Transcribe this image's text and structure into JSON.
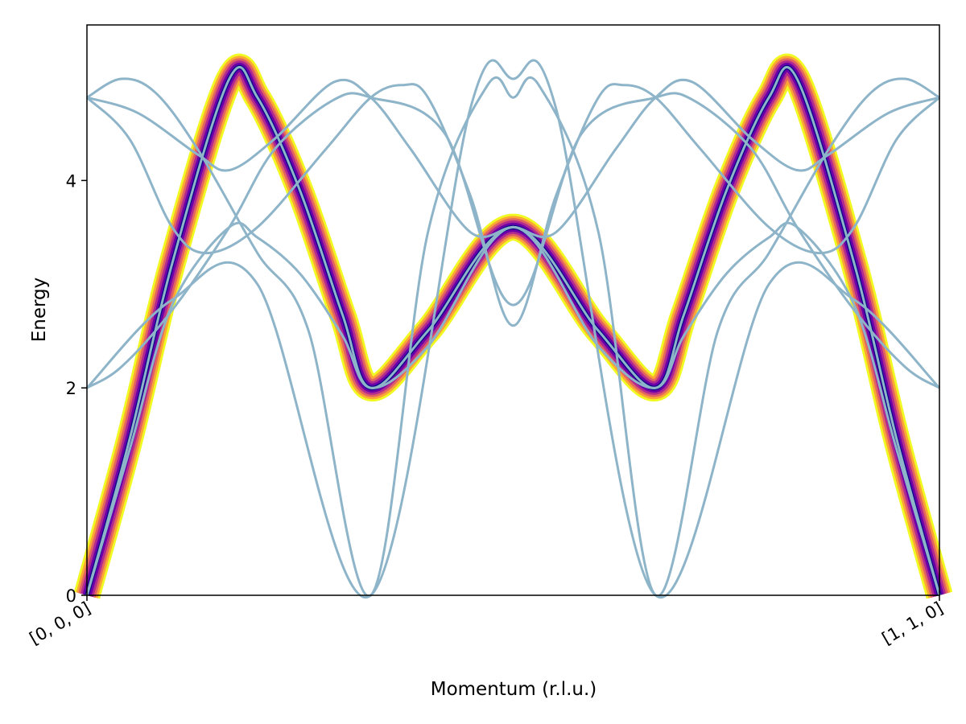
{
  "chart_data": {
    "type": "line",
    "xlabel": "Momentum (r.l.u.)",
    "ylabel": "Energy",
    "xlim": [
      0,
      1
    ],
    "ylim": [
      0,
      5.5
    ],
    "x_ticks": [
      {
        "value": 0,
        "label": "[0, 0, 0]"
      },
      {
        "value": 1,
        "label": "[1, 1, 0]"
      }
    ],
    "y_ticks": [
      {
        "value": 0,
        "label": "0"
      },
      {
        "value": 2,
        "label": "2"
      },
      {
        "value": 4,
        "label": "4"
      }
    ],
    "grid": false,
    "legend": "none",
    "line_color": "#8db4c8",
    "heatmap_colors": [
      "#f0f921",
      "#fca636",
      "#e16462",
      "#b12a90",
      "#6a00a8",
      "#0d0887"
    ],
    "series": [
      {
        "points": [
          [
            0,
            0
          ],
          [
            0.05,
            1.4
          ],
          [
            0.1,
            2.8
          ],
          [
            0.167,
            3.55
          ],
          [
            0.2,
            3.45
          ],
          [
            0.25,
            3.1
          ],
          [
            0.3,
            2.5
          ],
          [
            0.333,
            2.0
          ],
          [
            0.4,
            2.4
          ],
          [
            0.5,
            3.55
          ],
          [
            0.6,
            2.4
          ],
          [
            0.667,
            2.0
          ],
          [
            0.7,
            2.5
          ],
          [
            0.75,
            3.1
          ],
          [
            0.8,
            3.45
          ],
          [
            0.833,
            3.55
          ],
          [
            0.9,
            2.8
          ],
          [
            0.95,
            1.4
          ],
          [
            1,
            0
          ]
        ]
      },
      {
        "points": [
          [
            0,
            0
          ],
          [
            0.05,
            1.5
          ],
          [
            0.1,
            3.2
          ],
          [
            0.167,
            4.98
          ],
          [
            0.2,
            4.8
          ],
          [
            0.25,
            3.9
          ],
          [
            0.3,
            2.7
          ],
          [
            0.333,
            2.0
          ],
          [
            0.4,
            2.55
          ],
          [
            0.5,
            3.55
          ],
          [
            0.6,
            2.55
          ],
          [
            0.667,
            2.0
          ],
          [
            0.7,
            2.7
          ],
          [
            0.75,
            3.9
          ],
          [
            0.8,
            4.8
          ],
          [
            0.833,
            4.98
          ],
          [
            0.9,
            3.2
          ],
          [
            0.95,
            1.5
          ],
          [
            1,
            0
          ]
        ]
      },
      {
        "points": [
          [
            0,
            4.8
          ],
          [
            0.05,
            4.4
          ],
          [
            0.1,
            3.55
          ],
          [
            0.14,
            3.3
          ],
          [
            0.2,
            3.55
          ],
          [
            0.28,
            4.3
          ],
          [
            0.333,
            4.8
          ],
          [
            0.37,
            4.92
          ],
          [
            0.4,
            4.8
          ],
          [
            0.45,
            3.85
          ],
          [
            0.5,
            2.6
          ],
          [
            0.55,
            3.85
          ],
          [
            0.6,
            4.8
          ],
          [
            0.63,
            4.92
          ],
          [
            0.667,
            4.8
          ],
          [
            0.72,
            4.3
          ],
          [
            0.8,
            3.55
          ],
          [
            0.86,
            3.3
          ],
          [
            0.9,
            3.55
          ],
          [
            0.95,
            4.4
          ],
          [
            1,
            4.8
          ]
        ]
      },
      {
        "points": [
          [
            0,
            4.8
          ],
          [
            0.06,
            4.65
          ],
          [
            0.13,
            4.25
          ],
          [
            0.167,
            4.1
          ],
          [
            0.22,
            4.4
          ],
          [
            0.29,
            4.95
          ],
          [
            0.333,
            4.8
          ],
          [
            0.38,
            4.3
          ],
          [
            0.45,
            3.5
          ],
          [
            0.5,
            3.55
          ],
          [
            0.55,
            3.5
          ],
          [
            0.62,
            4.3
          ],
          [
            0.667,
            4.8
          ],
          [
            0.71,
            4.95
          ],
          [
            0.78,
            4.4
          ],
          [
            0.833,
            4.1
          ],
          [
            0.87,
            4.25
          ],
          [
            0.94,
            4.65
          ],
          [
            1,
            4.8
          ]
        ]
      },
      {
        "points": [
          [
            0,
            2.0
          ],
          [
            0.04,
            2.2
          ],
          [
            0.1,
            2.75
          ],
          [
            0.167,
            3.55
          ],
          [
            0.22,
            4.3
          ],
          [
            0.29,
            4.78
          ],
          [
            0.333,
            4.8
          ],
          [
            0.42,
            4.45
          ],
          [
            0.5,
            2.8
          ],
          [
            0.58,
            4.45
          ],
          [
            0.667,
            4.8
          ],
          [
            0.71,
            4.78
          ],
          [
            0.78,
            4.3
          ],
          [
            0.833,
            3.55
          ],
          [
            0.9,
            2.75
          ],
          [
            0.96,
            2.2
          ],
          [
            1,
            2.0
          ]
        ]
      },
      {
        "points": [
          [
            0,
            4.8
          ],
          [
            0.04,
            4.98
          ],
          [
            0.08,
            4.85
          ],
          [
            0.13,
            4.3
          ],
          [
            0.2,
            3.3
          ],
          [
            0.26,
            2.55
          ],
          [
            0.333,
            0
          ],
          [
            0.4,
            3.5
          ],
          [
            0.47,
            4.92
          ],
          [
            0.5,
            4.8
          ],
          [
            0.53,
            4.92
          ],
          [
            0.6,
            3.5
          ],
          [
            0.667,
            0
          ],
          [
            0.74,
            2.55
          ],
          [
            0.8,
            3.3
          ],
          [
            0.87,
            4.3
          ],
          [
            0.92,
            4.85
          ],
          [
            0.96,
            4.98
          ],
          [
            1,
            4.8
          ]
        ]
      },
      {
        "points": [
          [
            0,
            2.0
          ],
          [
            0.1,
            2.85
          ],
          [
            0.2,
            3.0
          ],
          [
            0.333,
            0
          ],
          [
            0.45,
            4.7
          ],
          [
            0.5,
            4.98
          ],
          [
            0.55,
            4.7
          ],
          [
            0.667,
            0
          ],
          [
            0.8,
            3.0
          ],
          [
            0.9,
            2.85
          ],
          [
            1,
            2.0
          ]
        ]
      }
    ],
    "intensity_band": {
      "points": [
        [
          0,
          0
        ],
        [
          0.05,
          1.5
        ],
        [
          0.1,
          3.2
        ],
        [
          0.167,
          4.98
        ],
        [
          0.2,
          4.8
        ],
        [
          0.25,
          3.9
        ],
        [
          0.3,
          2.7
        ],
        [
          0.333,
          2.0
        ],
        [
          0.4,
          2.55
        ],
        [
          0.5,
          3.55
        ],
        [
          0.6,
          2.55
        ],
        [
          0.667,
          2.0
        ],
        [
          0.7,
          2.7
        ],
        [
          0.75,
          3.9
        ],
        [
          0.8,
          4.8
        ],
        [
          0.833,
          4.98
        ],
        [
          0.9,
          3.2
        ],
        [
          0.95,
          1.5
        ],
        [
          1,
          0
        ]
      ],
      "half_width": 0.13
    }
  }
}
